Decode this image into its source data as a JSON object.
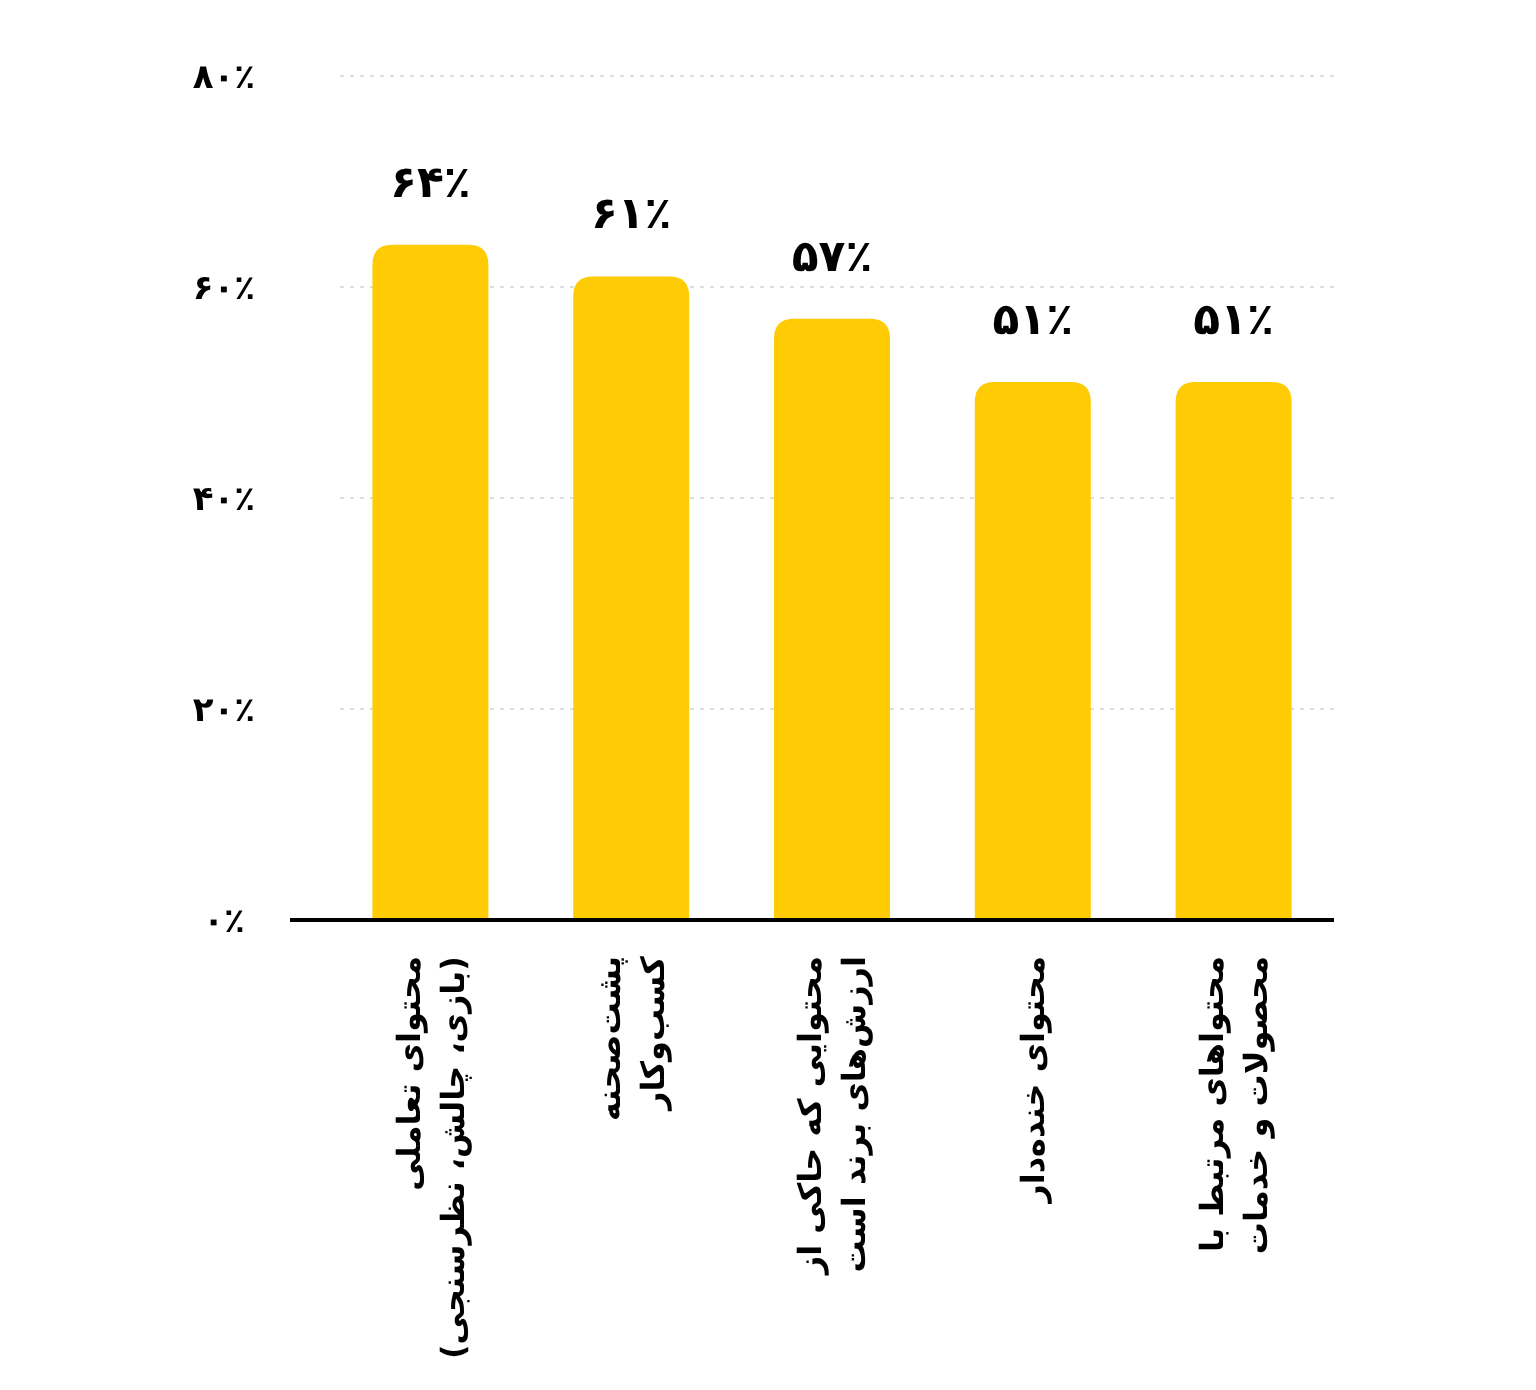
{
  "chart_data": {
    "type": "bar",
    "categories": [
      "محتوای تعاملی\n(بازی، چالش، نظرسنجی)",
      "پشت‌صحنه\nکسب‌وکار",
      "محتوایی که حاکی از\nارزش‌های برند است",
      "محتوای خنده‌دار",
      "محتواهای مرتبط با\nمحصولات و خدمات"
    ],
    "values": [
      64,
      61,
      57,
      51,
      51
    ],
    "value_labels": [
      "۶۴٪",
      "۶۱٪",
      "۵۷٪",
      "۵۱٪",
      "۵۱٪"
    ],
    "color": "#ffcb05",
    "ylim": [
      0,
      80
    ],
    "yticks": [
      {
        "value": 0,
        "label": "۰٪"
      },
      {
        "value": 20,
        "label": "۲۰٪"
      },
      {
        "value": 40,
        "label": "۴۰٪"
      },
      {
        "value": 60,
        "label": "۶۰٪"
      },
      {
        "value": 80,
        "label": "۸۰٪"
      }
    ],
    "grid": "y"
  }
}
